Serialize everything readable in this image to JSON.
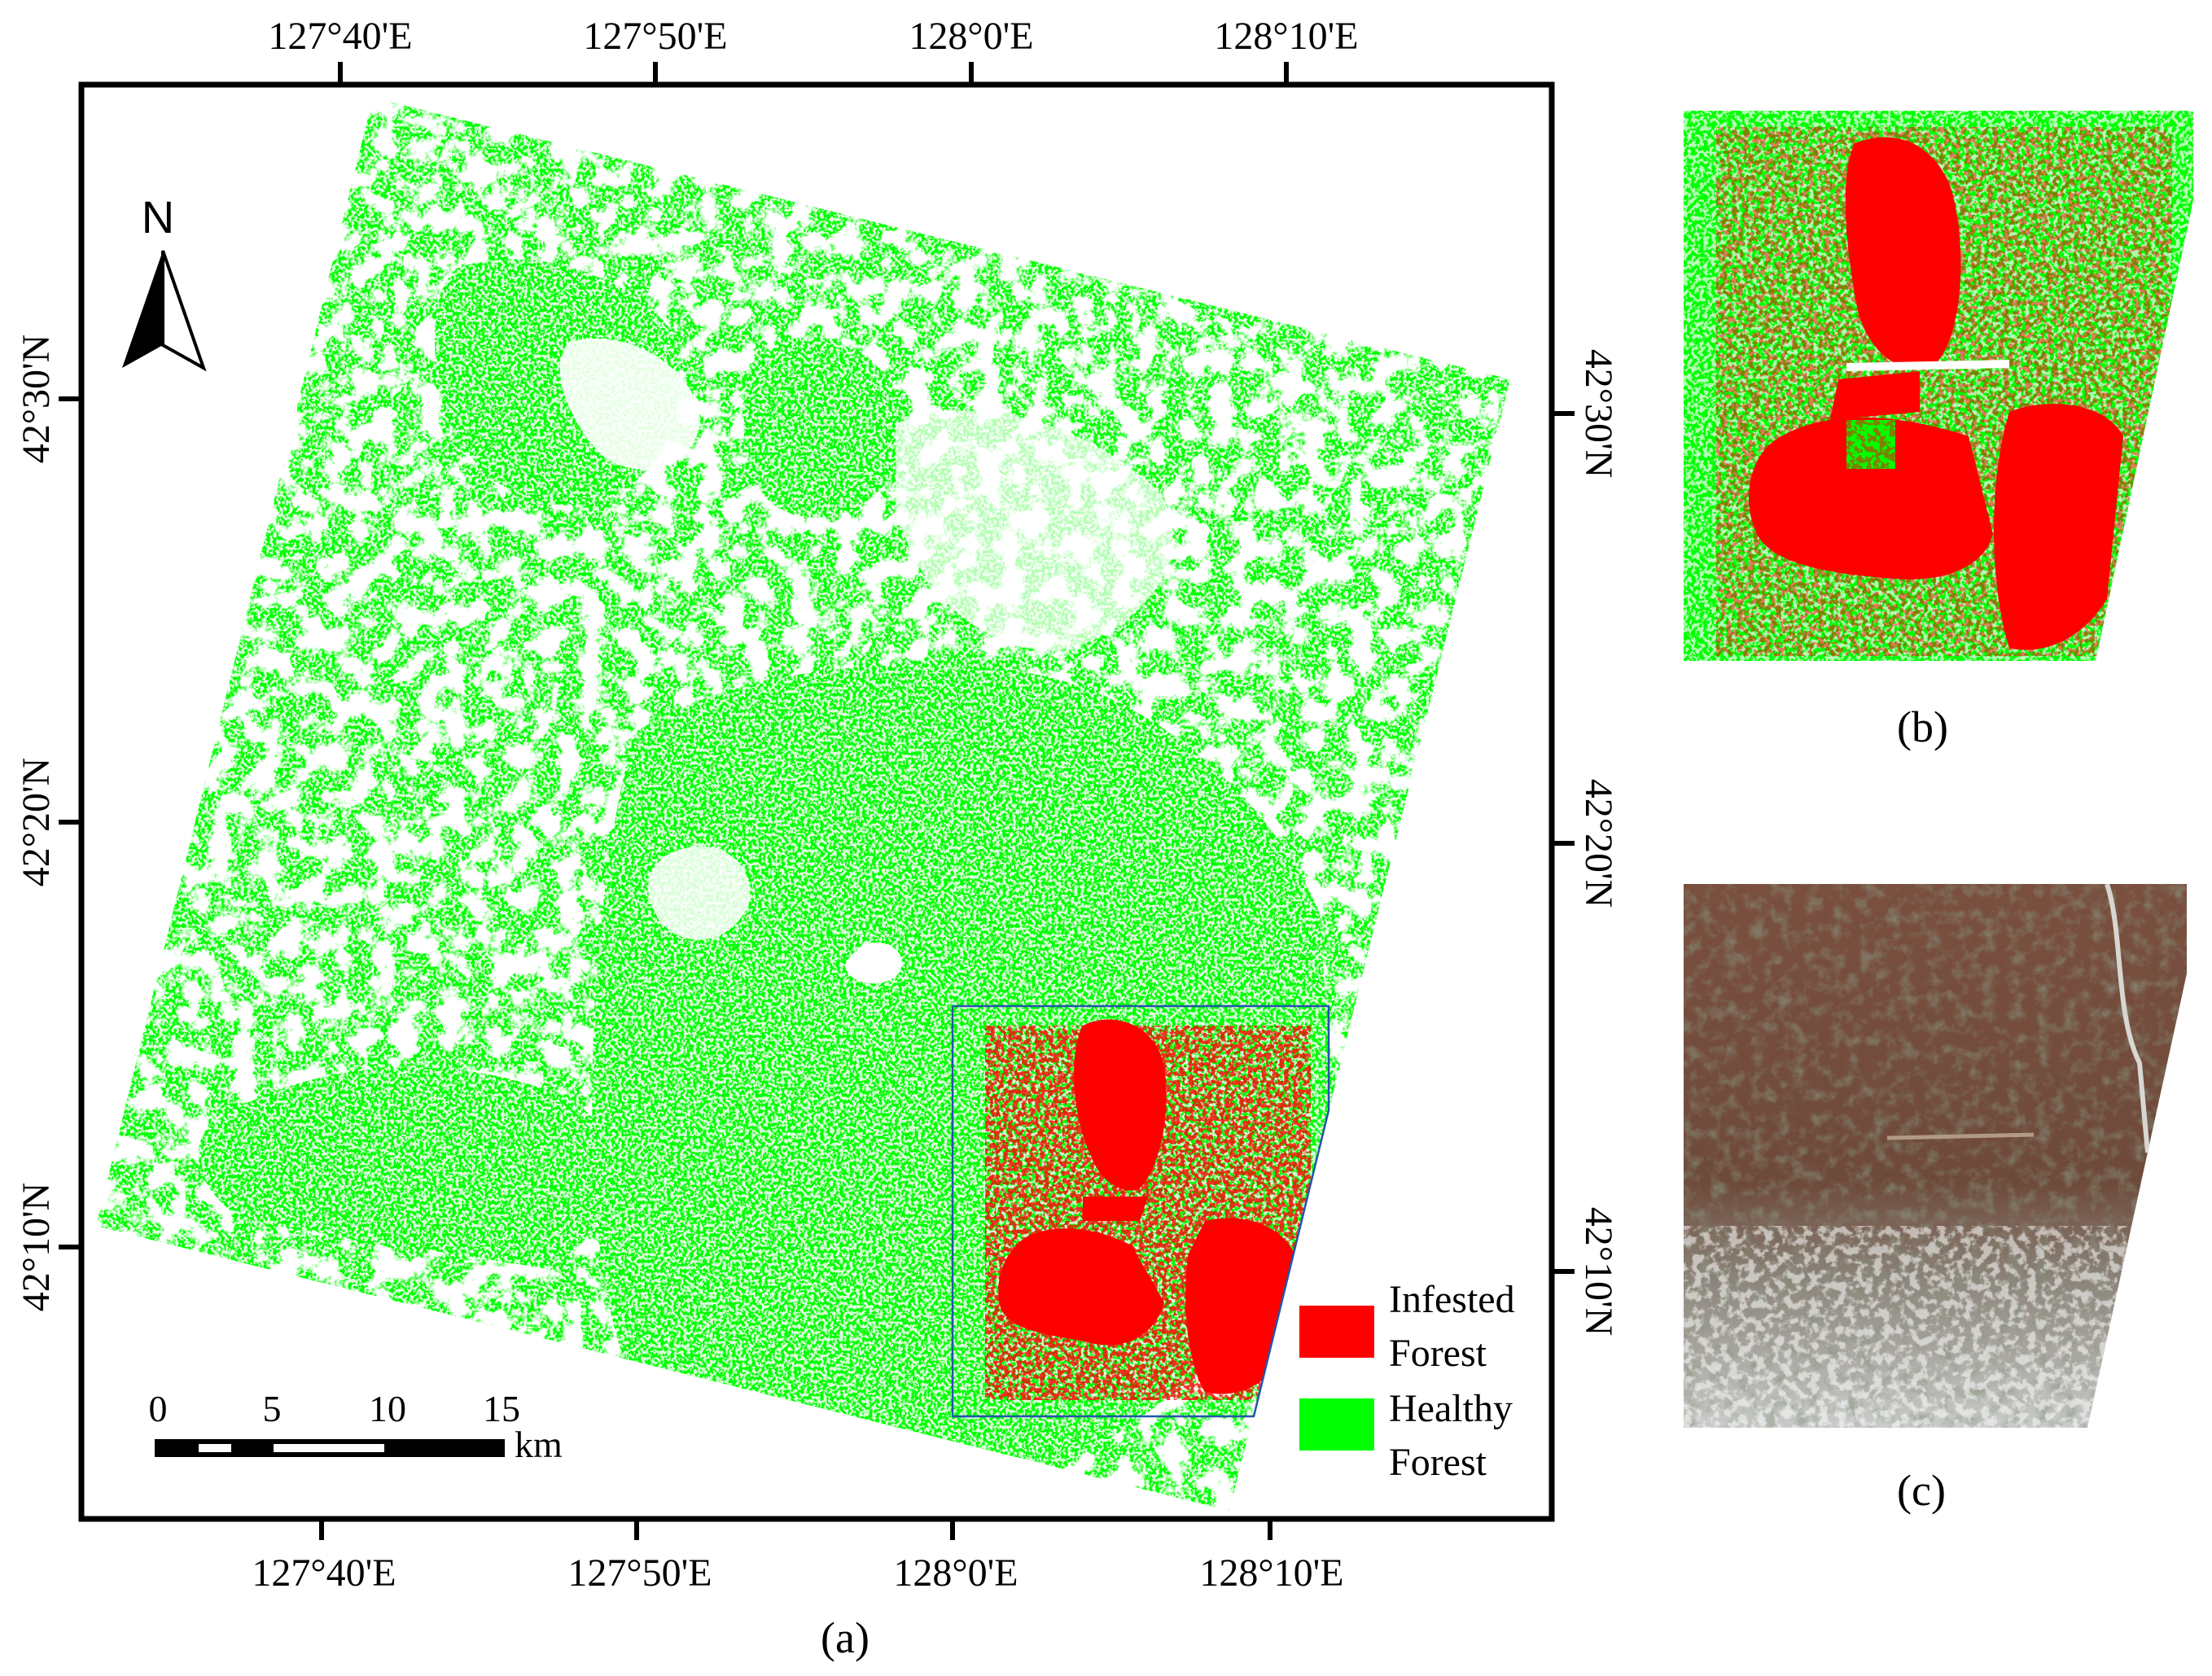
{
  "panel_a": {
    "caption": "(a)",
    "top_lon_labels": [
      "127°40'E",
      "127°50'E",
      "128°0'E",
      "128°10'E"
    ],
    "bottom_lon_labels": [
      "127°40'E",
      "127°50'E",
      "128°0'E",
      "128°10'E"
    ],
    "left_lat_labels": [
      "42°30'N",
      "42°20'N",
      "42°10'N"
    ],
    "right_lat_labels": [
      "42°30'N",
      "42°20'N",
      "42°10'N"
    ],
    "north_arrow_label": "N",
    "scale_bar": {
      "ticks": [
        "0",
        "5",
        "10",
        "15"
      ],
      "unit": "km"
    },
    "legend": [
      {
        "label_line1": "Infested",
        "label_line2": "Forest",
        "color": "#ff0000"
      },
      {
        "label_line1": "Healthy",
        "label_line2": "Forest",
        "color": "#00ff00"
      }
    ],
    "colors": {
      "healthy": "#00ff00",
      "infested": "#ff0000",
      "box": "#2255aa"
    }
  },
  "panel_b": {
    "caption": "(b)"
  },
  "panel_c": {
    "caption": "(c)"
  }
}
